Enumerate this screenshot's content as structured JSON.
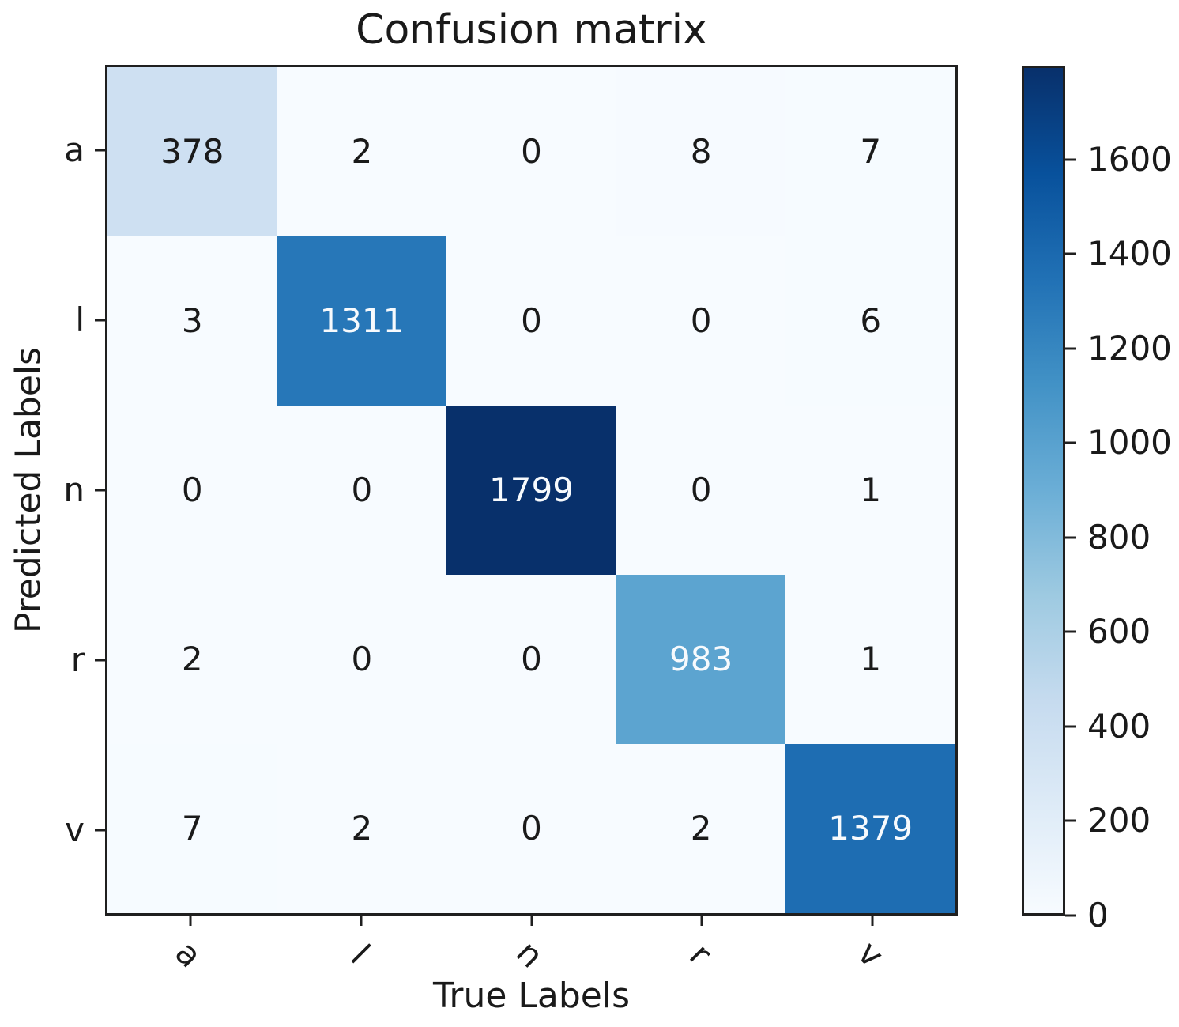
{
  "chart_data": {
    "type": "heatmap",
    "title": "Confusion matrix",
    "xlabel": "True Labels",
    "ylabel": "Predicted Labels",
    "x_tick_labels": [
      "a",
      "l",
      "n",
      "r",
      "v"
    ],
    "y_tick_labels": [
      "a",
      "l",
      "n",
      "r",
      "v"
    ],
    "matrix": [
      [
        378,
        2,
        0,
        8,
        7
      ],
      [
        3,
        1311,
        0,
        0,
        6
      ],
      [
        0,
        0,
        1799,
        0,
        1
      ],
      [
        2,
        0,
        0,
        983,
        1
      ],
      [
        7,
        2,
        0,
        2,
        1379
      ]
    ],
    "vmin": 0,
    "vmax": 1799,
    "colormap": "Blues",
    "colormap_stops": [
      "#f7fbff",
      "#deebf7",
      "#c6dbef",
      "#9ecae1",
      "#6baed6",
      "#4292c6",
      "#2171b5",
      "#08519c",
      "#08306b"
    ],
    "colorbar_ticks": [
      0,
      200,
      400,
      600,
      800,
      1000,
      1200,
      1400,
      1600
    ],
    "x_tick_rotation_deg": 45,
    "legend_position": "right-colorbar",
    "grid": false,
    "annotation_color_light_cells": "#1a1a1a",
    "annotation_color_dark_cells": "#f7fafd",
    "axis_color": "#1f1f1f",
    "label_color": "#1a1a1a",
    "background_color": "#ffffff"
  }
}
